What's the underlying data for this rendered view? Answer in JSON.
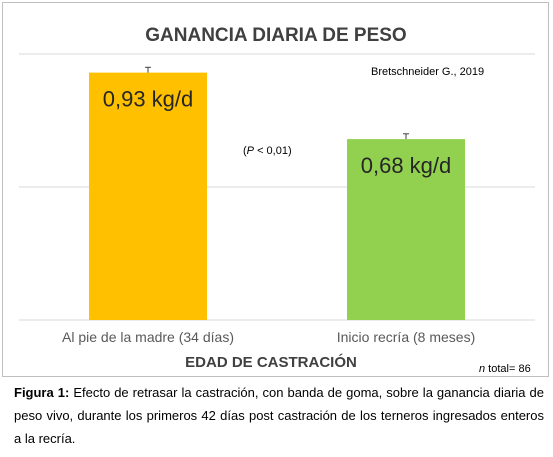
{
  "chart_data": {
    "type": "bar",
    "title": "GANANCIA DIARIA DE PESO",
    "source_note": "Bretschneider G., 2019",
    "significance": "(P < 0,01)",
    "significance_parts": [
      "(",
      "P",
      " < 0,01)"
    ],
    "xlabel": "EDAD DE CASTRACIÓN",
    "ylabel": "",
    "n_note_italic": "n",
    "n_note_rest": " total= 86",
    "categories": [
      "Al pie de la madre (34 días)",
      "Inicio recría (8 meses)"
    ],
    "values": [
      0.93,
      0.68
    ],
    "value_labels": [
      "0,93 kg/d",
      "0,68 kg/d"
    ],
    "error_plus": [
      0.02,
      0.02
    ],
    "colors": [
      "#FFC000",
      "#92D050"
    ],
    "ylim": [
      0,
      1.0
    ],
    "grid": true
  },
  "caption": {
    "label": "Figura 1:",
    "text": " Efecto de retrasar la castración, con banda de goma, sobre la ganancia diaria de peso vivo, durante los primeros 42 días post castración de los terneros ingresados enteros a la recría."
  }
}
